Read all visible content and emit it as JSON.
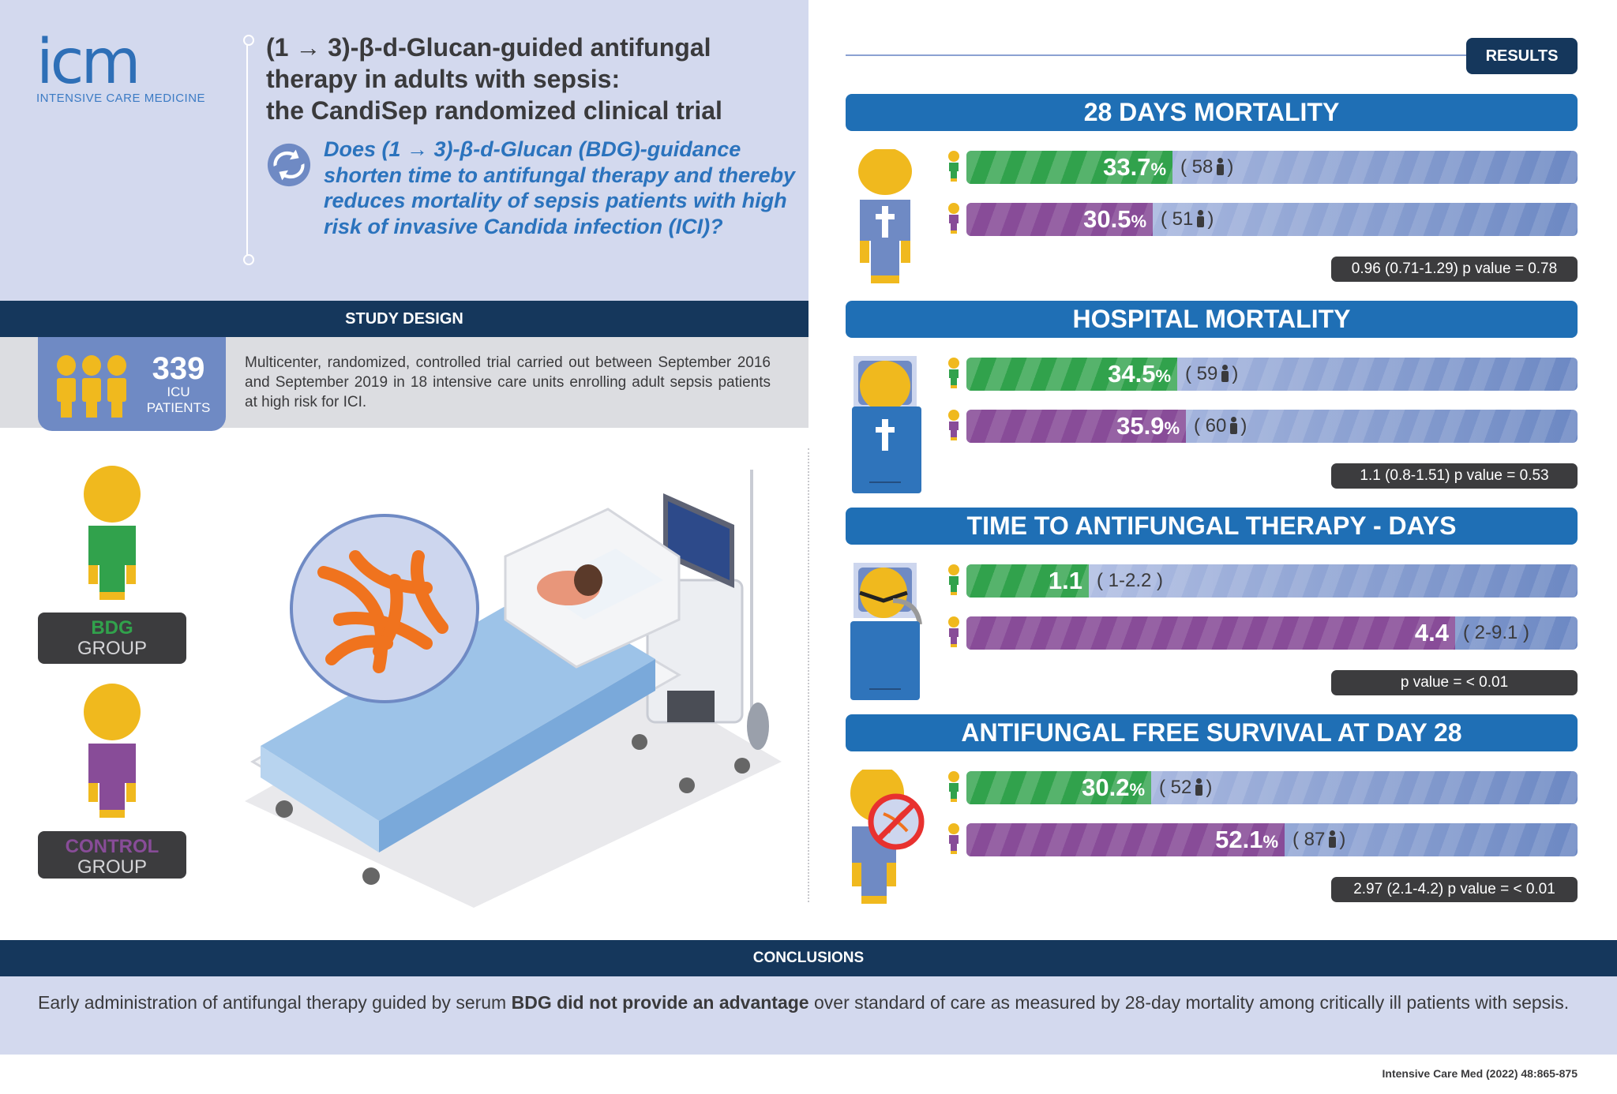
{
  "logo": {
    "mark": "icm",
    "subtitle": "INTENSIVE CARE MEDICINE"
  },
  "header": {
    "title_lines": [
      "(1 → 3)-β-d-Glucan-guided antifungal",
      "therapy in adults with sepsis:",
      "the CandiSep randomized clinical trial"
    ],
    "question": "Does (1 → 3)-β-d-Glucan (BDG)-guidance shorten time to antifungal therapy and thereby reduces mortality of sepsis patients with high risk of invasive Candida infection (ICI)?"
  },
  "study_design": {
    "label": "STUDY DESIGN",
    "count": "339",
    "count_label_1": "ICU",
    "count_label_2": "PATIENTS",
    "description": "Multicenter, randomized, controlled trial carried out between September 2016 and September 2019 in 18 intensive care units enrolling adult sepsis patients at high risk for ICI."
  },
  "groups": [
    {
      "line1": "BDG",
      "line2": "GROUP",
      "color": "#31a24c"
    },
    {
      "line1": "CONTROL",
      "line2": "GROUP",
      "color": "#884c98"
    }
  ],
  "results": {
    "label": "RESULTS"
  },
  "colors": {
    "bdg": "#31a24c",
    "control": "#884c98",
    "header": "#1f6fb5",
    "navy": "#15375c",
    "head": "#f0b91e"
  },
  "chart_data": [
    {
      "type": "bar",
      "title": "28 DAYS MORTALITY",
      "icon": "deceased-patient-icon",
      "xlim": [
        0,
        100
      ],
      "series": [
        {
          "group": "BDG",
          "value": 33.7,
          "label": "33.7",
          "unit": "%",
          "n": "58"
        },
        {
          "group": "CONTROL",
          "value": 30.5,
          "label": "30.5",
          "unit": "%",
          "n": "51"
        }
      ],
      "stat": "0.96 (0.71-1.29) p value = 0.78"
    },
    {
      "type": "bar",
      "title": "HOSPITAL MORTALITY",
      "icon": "hospital-deceased-icon",
      "xlim": [
        0,
        100
      ],
      "series": [
        {
          "group": "BDG",
          "value": 34.5,
          "label": "34.5",
          "unit": "%",
          "n": "59"
        },
        {
          "group": "CONTROL",
          "value": 35.9,
          "label": "35.9",
          "unit": "%",
          "n": "60"
        }
      ],
      "stat": "1.1 (0.8-1.51) p value = 0.53"
    },
    {
      "type": "bar",
      "title": "TIME TO ANTIFUNGAL THERAPY - DAYS",
      "icon": "ventilated-patient-icon",
      "xlim": [
        0,
        5.5
      ],
      "series": [
        {
          "group": "BDG",
          "value": 1.1,
          "label": "1.1",
          "unit": "",
          "range": "( 1-2.2 )"
        },
        {
          "group": "CONTROL",
          "value": 4.4,
          "label": "4.4",
          "unit": "",
          "range": "( 2-9.1 )"
        }
      ],
      "stat": "p value = < 0.01"
    },
    {
      "type": "bar",
      "title": "ANTIFUNGAL FREE SURVIVAL AT DAY 28",
      "icon": "no-fungus-patient-icon",
      "xlim": [
        0,
        100
      ],
      "series": [
        {
          "group": "BDG",
          "value": 30.2,
          "label": "30.2",
          "unit": "%",
          "n": "52"
        },
        {
          "group": "CONTROL",
          "value": 52.1,
          "label": "52.1",
          "unit": "%",
          "n": "87"
        }
      ],
      "stat": "2.97 (2.1-4.2) p value = < 0.01"
    }
  ],
  "conclusions": {
    "label": "CONCLUSIONS",
    "text_before": "Early administration of antifungal therapy guided by serum ",
    "text_bold": "BDG did not provide an advantage",
    "text_after": " over standard of care as measured by 28-day mortality among critically ill patients with sepsis."
  },
  "citation": "Intensive Care Med (2022) 48:865-875"
}
